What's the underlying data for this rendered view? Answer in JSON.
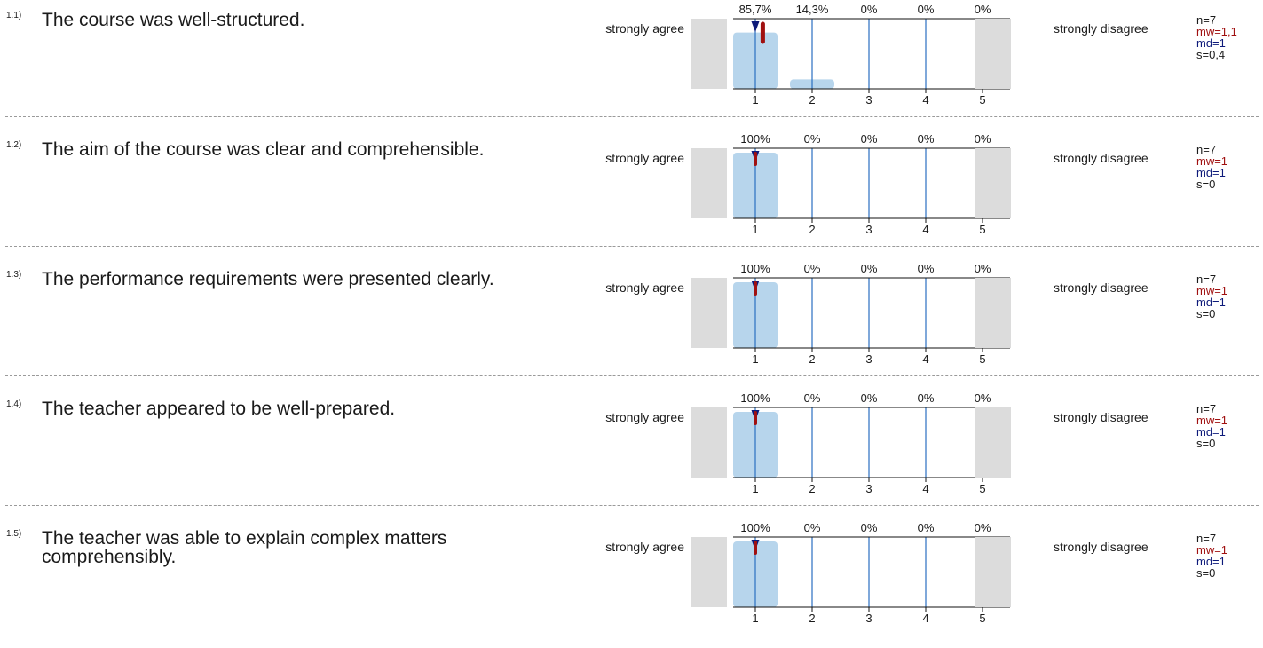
{
  "scale": {
    "left_label": "strongly agree",
    "right_label": "strongly disagree",
    "ticks": [
      "1",
      "2",
      "3",
      "4",
      "5"
    ]
  },
  "colors": {
    "bar": "#b7d5ec",
    "side": "#dcdcdc",
    "grid": "#2a6fc0",
    "median": "#0d1a7a",
    "mean": "#a01010"
  },
  "chart_data": [
    {
      "type": "bar",
      "id": "1.1)",
      "question": "The course was well-structured.",
      "categories": [
        "1",
        "2",
        "3",
        "4",
        "5"
      ],
      "values": [
        85.7,
        14.3,
        0,
        0,
        0
      ],
      "value_labels": [
        "85,7%",
        "14,3%",
        "0%",
        "0%",
        "0%"
      ],
      "ylim": [
        0,
        100
      ],
      "n": "n=7",
      "mw_label": "mw=1,1",
      "md_label": "md=1",
      "s": "s=0,4",
      "mean": 1.1,
      "median": 1,
      "sd": 0.4
    },
    {
      "type": "bar",
      "id": "1.2)",
      "question": "The aim of the course was clear and comprehensible.",
      "categories": [
        "1",
        "2",
        "3",
        "4",
        "5"
      ],
      "values": [
        100,
        0,
        0,
        0,
        0
      ],
      "value_labels": [
        "100%",
        "0%",
        "0%",
        "0%",
        "0%"
      ],
      "ylim": [
        0,
        100
      ],
      "n": "n=7",
      "mw_label": "mw=1",
      "md_label": "md=1",
      "s": "s=0",
      "mean": 1,
      "median": 1,
      "sd": 0
    },
    {
      "type": "bar",
      "id": "1.3)",
      "question": "The performance requirements were presented clearly.",
      "categories": [
        "1",
        "2",
        "3",
        "4",
        "5"
      ],
      "values": [
        100,
        0,
        0,
        0,
        0
      ],
      "value_labels": [
        "100%",
        "0%",
        "0%",
        "0%",
        "0%"
      ],
      "ylim": [
        0,
        100
      ],
      "n": "n=7",
      "mw_label": "mw=1",
      "md_label": "md=1",
      "s": "s=0",
      "mean": 1,
      "median": 1,
      "sd": 0
    },
    {
      "type": "bar",
      "id": "1.4)",
      "question": "The teacher appeared to be well-prepared.",
      "categories": [
        "1",
        "2",
        "3",
        "4",
        "5"
      ],
      "values": [
        100,
        0,
        0,
        0,
        0
      ],
      "value_labels": [
        "100%",
        "0%",
        "0%",
        "0%",
        "0%"
      ],
      "ylim": [
        0,
        100
      ],
      "n": "n=7",
      "mw_label": "mw=1",
      "md_label": "md=1",
      "s": "s=0",
      "mean": 1,
      "median": 1,
      "sd": 0
    },
    {
      "type": "bar",
      "id": "1.5)",
      "question": "The teacher was able to explain complex matters comprehensibly.",
      "categories": [
        "1",
        "2",
        "3",
        "4",
        "5"
      ],
      "values": [
        100,
        0,
        0,
        0,
        0
      ],
      "value_labels": [
        "100%",
        "0%",
        "0%",
        "0%",
        "0%"
      ],
      "ylim": [
        0,
        100
      ],
      "n": "n=7",
      "mw_label": "mw=1",
      "md_label": "md=1",
      "s": "s=0",
      "mean": 1,
      "median": 1,
      "sd": 0
    }
  ]
}
